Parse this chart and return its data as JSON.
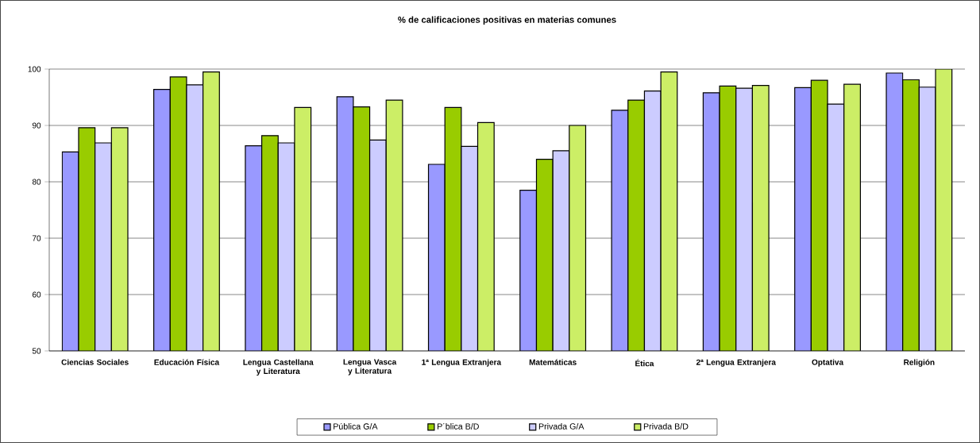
{
  "chart_data": {
    "type": "bar",
    "title": "% de calificaciones positivas en materias comunes",
    "categories": [
      "Ciencias Sociales",
      "Educación Física",
      "Lengua Castellana y Literatura",
      "Lengua Vasca y Literatura",
      "1ª Lengua Extranjera",
      "Matemáticas",
      "Ética",
      "2ª Lengua Extranjera",
      "Optativa",
      "Religión"
    ],
    "series": [
      {
        "name": "Pública G/A",
        "color": "#9999ff",
        "values": [
          85.3,
          96.4,
          86.4,
          95.1,
          83.1,
          78.5,
          92.7,
          95.8,
          96.7,
          99.3
        ]
      },
      {
        "name": "P´blica B/D",
        "color": "#99cc00",
        "values": [
          89.6,
          98.6,
          88.2,
          93.3,
          93.2,
          84.0,
          94.5,
          97.0,
          98.0,
          98.1
        ]
      },
      {
        "name": "Privada G/A",
        "color": "#ccccff",
        "values": [
          86.9,
          97.2,
          86.9,
          87.4,
          86.3,
          85.5,
          96.1,
          96.6,
          93.8,
          96.8
        ]
      },
      {
        "name": "Privada B/D",
        "color": "#ccee66",
        "values": [
          89.6,
          99.5,
          93.2,
          94.5,
          90.5,
          90.0,
          99.5,
          97.1,
          97.3,
          100
        ]
      }
    ],
    "ylim": [
      50,
      100
    ],
    "yticks": [
      50,
      60,
      70,
      80,
      90,
      100
    ],
    "grid": "y",
    "legend": "bottom"
  }
}
